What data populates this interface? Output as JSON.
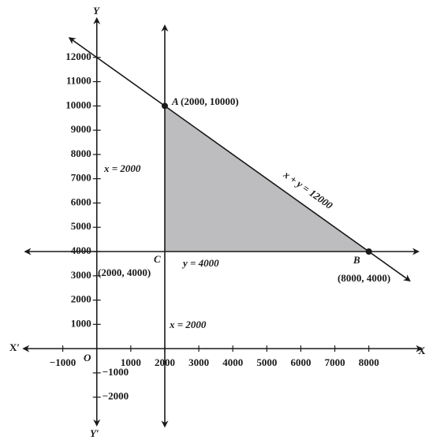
{
  "chart_data": {
    "type": "line",
    "xlim": [
      -2800,
      9700
    ],
    "ylim": [
      -3700,
      14300
    ],
    "xticks": [
      {
        "value": -1000,
        "label": "−1000"
      },
      1000,
      2000,
      3000,
      4000,
      5000,
      6000,
      7000,
      8000
    ],
    "yticks": [
      {
        "value": -2000,
        "label": "−2000"
      },
      {
        "value": -1000,
        "label": "−1000"
      },
      1000,
      2000,
      3000,
      4000,
      5000,
      6000,
      7000,
      8000,
      9000,
      10000,
      11000,
      12000
    ],
    "axis_labels": {
      "x": "X",
      "x_neg": "X′",
      "y": "Y",
      "y_neg": "Y′",
      "origin": "O"
    },
    "axes": {
      "x": [
        -2150,
        9550
      ],
      "y": [
        -3150,
        13600
      ]
    },
    "series": [
      {
        "name": "x + y = 12000",
        "color": "#1a1a1a",
        "x": [
          -800,
          9200
        ],
        "y": [
          12800,
          2800
        ]
      },
      {
        "name": "x = 2000",
        "color": "#1a1a1a",
        "x": [
          2000,
          2000
        ],
        "y": [
          -3200,
          13300
        ]
      },
      {
        "name": "y = 4000",
        "color": "#1a1a1a",
        "x": [
          -2100,
          9450
        ],
        "y": [
          4000,
          4000
        ]
      }
    ],
    "region": {
      "color": "#bdbdbf",
      "x": [
        2000,
        2000,
        8000
      ],
      "y": [
        4000,
        10000,
        4000
      ]
    },
    "points": [
      {
        "label": "A",
        "coords": "(2000, 10000)",
        "x": 2000,
        "y": 10000
      },
      {
        "label": "B",
        "coords": "(8000, 4000)",
        "x": 8000,
        "y": 4000
      },
      {
        "label": "C",
        "coords": "(2000, 4000)",
        "x": 2000,
        "y": 4000
      }
    ]
  }
}
